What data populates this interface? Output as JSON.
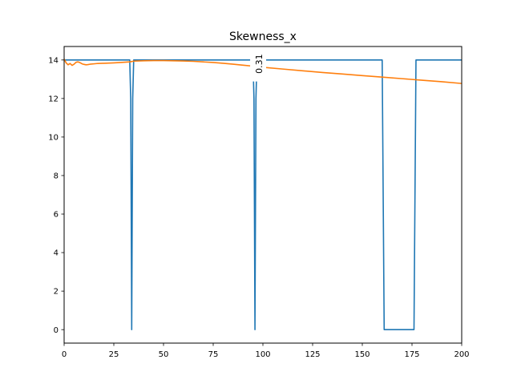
{
  "chart_data": {
    "type": "line",
    "title": "Skewness_x",
    "xlabel": "",
    "ylabel": "",
    "xlim": [
      0,
      200
    ],
    "ylim": [
      -0.7,
      14.7
    ],
    "xticks": [
      "0",
      "25",
      "50",
      "75",
      "100",
      "125",
      "150",
      "175",
      "200"
    ],
    "yticks": [
      "0",
      "2",
      "4",
      "6",
      "8",
      "10",
      "12",
      "14"
    ],
    "grid": false,
    "annotation": {
      "text": "0.31",
      "x": 98,
      "y": 13.8,
      "rotation": 90
    },
    "series": [
      {
        "color": "#1f77b4",
        "points": [
          [
            0,
            14
          ],
          [
            33,
            14
          ],
          [
            33.5,
            12
          ],
          [
            34,
            0
          ],
          [
            34.5,
            12
          ],
          [
            35,
            14
          ],
          [
            95,
            14
          ],
          [
            95.5,
            12
          ],
          [
            96,
            0
          ],
          [
            96.5,
            12
          ],
          [
            97,
            14
          ],
          [
            160,
            14
          ],
          [
            161,
            0
          ],
          [
            176,
            0
          ],
          [
            177,
            14
          ],
          [
            200,
            14
          ]
        ]
      },
      {
        "color": "#ff7f0e",
        "points": [
          [
            0,
            14.05
          ],
          [
            1,
            13.85
          ],
          [
            2,
            13.75
          ],
          [
            3,
            13.82
          ],
          [
            4,
            13.72
          ],
          [
            5,
            13.78
          ],
          [
            6,
            13.88
          ],
          [
            7,
            13.9
          ],
          [
            8,
            13.86
          ],
          [
            9,
            13.8
          ],
          [
            10,
            13.77
          ],
          [
            11,
            13.75
          ],
          [
            12,
            13.76
          ],
          [
            13,
            13.78
          ],
          [
            15,
            13.8
          ],
          [
            17,
            13.82
          ],
          [
            20,
            13.83
          ],
          [
            25,
            13.85
          ],
          [
            30,
            13.88
          ],
          [
            33,
            13.9
          ],
          [
            35,
            13.94
          ],
          [
            40,
            13.96
          ],
          [
            45,
            13.97
          ],
          [
            50,
            13.97
          ],
          [
            55,
            13.96
          ],
          [
            60,
            13.95
          ],
          [
            65,
            13.93
          ],
          [
            70,
            13.9
          ],
          [
            75,
            13.87
          ],
          [
            80,
            13.83
          ],
          [
            85,
            13.78
          ],
          [
            90,
            13.73
          ],
          [
            95,
            13.68
          ],
          [
            100,
            13.62
          ],
          [
            110,
            13.53
          ],
          [
            120,
            13.44
          ],
          [
            130,
            13.35
          ],
          [
            140,
            13.27
          ],
          [
            150,
            13.19
          ],
          [
            160,
            13.11
          ],
          [
            170,
            13.03
          ],
          [
            180,
            12.95
          ],
          [
            190,
            12.87
          ],
          [
            200,
            12.78
          ]
        ]
      }
    ]
  }
}
